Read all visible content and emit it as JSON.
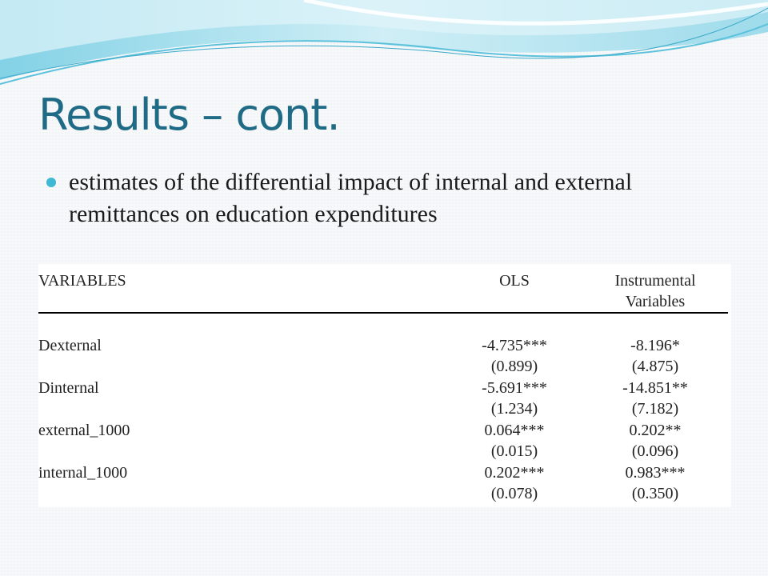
{
  "slide": {
    "title": "Results – cont.",
    "bullet": "estimates of the differential impact of internal and external remittances on education expenditures"
  },
  "table": {
    "headers": {
      "variables": "VARIABLES",
      "ols": "OLS",
      "iv_line1": "Instrumental",
      "iv_line2": "Variables"
    },
    "rows": [
      {
        "variable": "Dexternal",
        "ols": "-4.735***",
        "ols_se": "(0.899)",
        "iv": "-8.196*",
        "iv_se": "(4.875)"
      },
      {
        "variable": "Dinternal",
        "ols": "-5.691***",
        "ols_se": "(1.234)",
        "iv": "-14.851**",
        "iv_se": "(7.182)"
      },
      {
        "variable": "external_1000",
        "ols": "0.064***",
        "ols_se": "(0.015)",
        "iv": "0.202**",
        "iv_se": "(0.096)"
      },
      {
        "variable": "internal_1000",
        "ols": "0.202***",
        "ols_se": "(0.078)",
        "iv": "0.983***",
        "iv_se": "(0.350)"
      }
    ]
  },
  "colors": {
    "title": "#1f6b86",
    "bullet": "#3fb8d3",
    "wave_light": "#bfe8f2",
    "wave_mid": "#7fd0e4"
  }
}
